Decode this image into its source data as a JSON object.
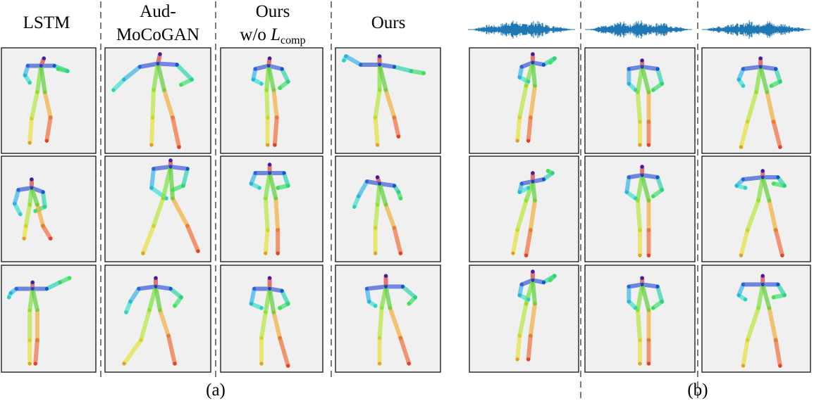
{
  "part_a": {
    "headers": [
      {
        "lines": [
          "LSTM"
        ]
      },
      {
        "lines": [
          "Aud-",
          "MoCoGAN"
        ]
      },
      {
        "lines": [
          "Ours",
          "w/o L_comp"
        ],
        "math_base": "L",
        "math_sub": "comp"
      },
      {
        "lines": [
          "Ours"
        ]
      }
    ],
    "caption": "(a)"
  },
  "part_b": {
    "caption": "(b)",
    "waveform_icons": [
      "audio-waveform",
      "audio-waveform",
      "audio-waveform"
    ]
  },
  "colors": {
    "panel_bg": "#f0f0f0",
    "waveform": "#1f77b4"
  },
  "pose_poses": {
    "description_none": "",
    "skeleton_joint_order": [
      "head",
      "neck",
      "r_shoulder",
      "r_elbow",
      "r_wrist",
      "l_shoulder",
      "l_elbow",
      "l_wrist",
      "r_hip",
      "r_knee",
      "r_ankle",
      "l_hip",
      "l_knee",
      "l_ankle"
    ]
  }
}
